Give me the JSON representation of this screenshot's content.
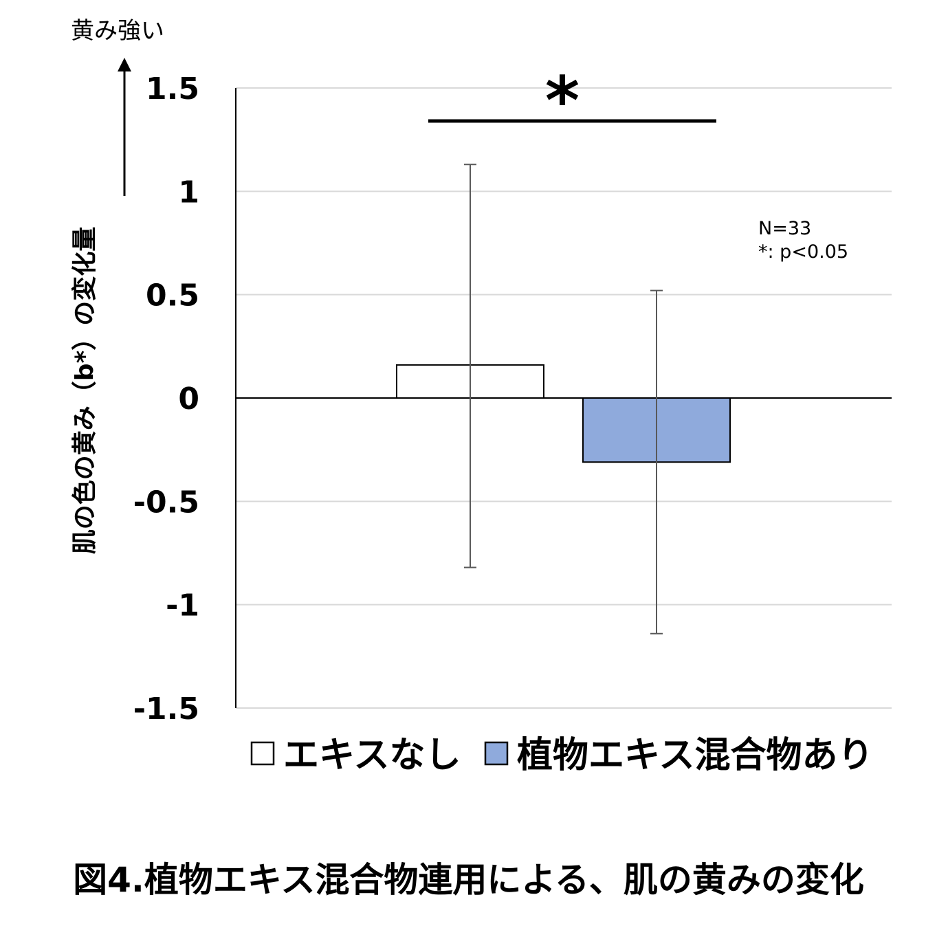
{
  "chart_data": {
    "type": "bar",
    "categories": [
      "エキスなし",
      "植物エキス混合物あり"
    ],
    "values": [
      0.16,
      -0.31
    ],
    "error_bars": [
      [
        -0.82,
        1.13
      ],
      [
        -1.14,
        0.52
      ]
    ],
    "series_colors": [
      "#ffffff",
      "#8faadc"
    ],
    "ylim": [
      -1.5,
      1.5
    ],
    "yticks": [
      "1.5",
      "1",
      "0.5",
      "0",
      "-0.5",
      "-1",
      "-1.5"
    ],
    "ytick_values": [
      1.5,
      1,
      0.5,
      0,
      -0.5,
      -1,
      -1.5
    ],
    "ylabel": "肌の色の黄み（b*）の変化量",
    "top_arrow_label": "黄み強い",
    "significance_mark": "*",
    "notes": [
      "N=33",
      "*: p<0.05"
    ],
    "grid": true,
    "legend_position": "bottom"
  },
  "caption": "図4.植物エキス混合物連用による、肌の黄みの変化"
}
